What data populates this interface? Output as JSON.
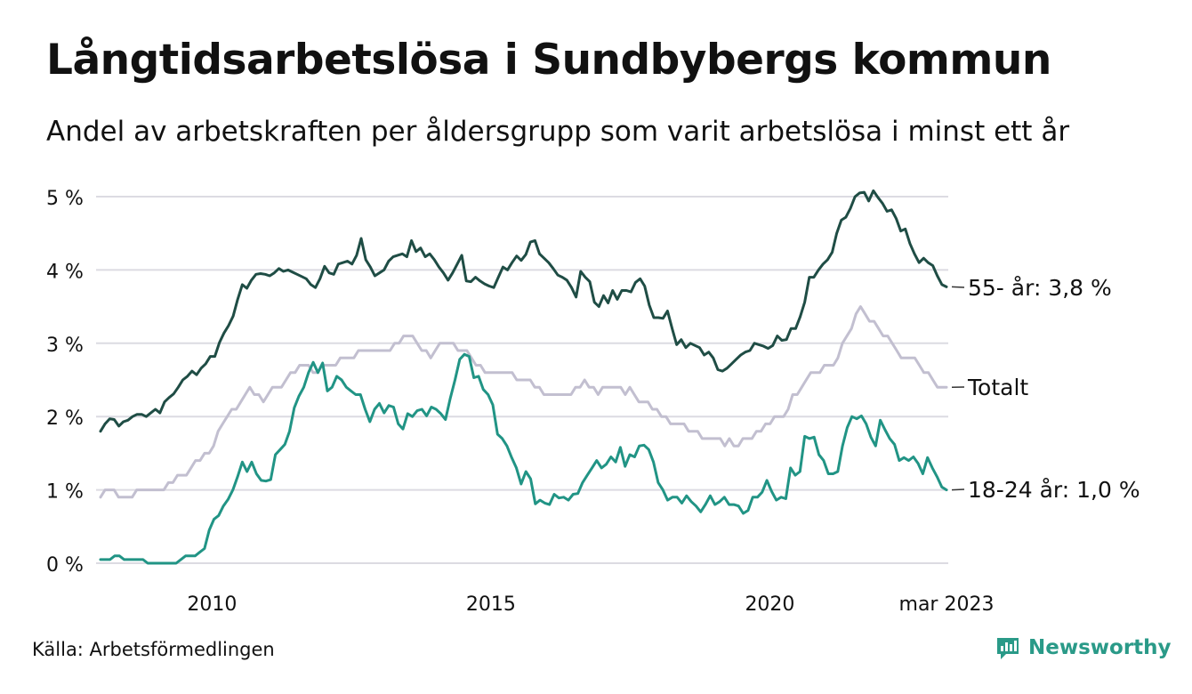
{
  "header": {
    "title": "Långtidsarbetslösa i Sundbybergs kommun",
    "subtitle": "Andel av arbetskraften per åldersgrupp som varit arbetslösa i minst ett år"
  },
  "footer": {
    "source": "Källa: Arbetsförmedlingen",
    "brand": "Newsworthy",
    "brand_icon": "bar-chart-speech-bubble-icon",
    "brand_color": "#2a9a88"
  },
  "chart_data": {
    "type": "line",
    "x_start": "2008-01",
    "x_end": "2023-03",
    "x_step": "month",
    "x_ticks": [
      {
        "label": "2010",
        "x": "2010-01"
      },
      {
        "label": "2015",
        "x": "2015-01"
      },
      {
        "label": "2020",
        "x": "2020-01"
      },
      {
        "label": "mar 2023",
        "x": "2023-03"
      }
    ],
    "y_ticks": [
      {
        "label": "0 %",
        "value": 0
      },
      {
        "label": "1 %",
        "value": 1
      },
      {
        "label": "2 %",
        "value": 2
      },
      {
        "label": "3 %",
        "value": 3
      },
      {
        "label": "4 %",
        "value": 4
      },
      {
        "label": "5 %",
        "value": 5
      }
    ],
    "ylim": [
      0,
      5.2
    ],
    "grid": true,
    "series": [
      {
        "name": "Totalt",
        "end_label": "Totalt",
        "color": "#c2bfd0",
        "values": [
          0.9,
          1.0,
          1.0,
          1.0,
          0.9,
          0.9,
          0.9,
          0.9,
          1.0,
          1.0,
          1.0,
          1.0,
          1.0,
          1.0,
          1.0,
          1.1,
          1.1,
          1.2,
          1.2,
          1.2,
          1.3,
          1.4,
          1.4,
          1.5,
          1.5,
          1.6,
          1.8,
          1.9,
          2.0,
          2.1,
          2.1,
          2.2,
          2.3,
          2.4,
          2.3,
          2.3,
          2.2,
          2.3,
          2.4,
          2.4,
          2.4,
          2.5,
          2.6,
          2.6,
          2.7,
          2.7,
          2.7,
          2.6,
          2.6,
          2.7,
          2.7,
          2.7,
          2.7,
          2.8,
          2.8,
          2.8,
          2.8,
          2.9,
          2.9,
          2.9,
          2.9,
          2.9,
          2.9,
          2.9,
          2.9,
          3.0,
          3.0,
          3.1,
          3.1,
          3.1,
          3.0,
          2.9,
          2.9,
          2.8,
          2.9,
          3.0,
          3.0,
          3.0,
          3.0,
          2.9,
          2.9,
          2.9,
          2.8,
          2.7,
          2.7,
          2.6,
          2.6,
          2.6,
          2.6,
          2.6,
          2.6,
          2.6,
          2.5,
          2.5,
          2.5,
          2.5,
          2.4,
          2.4,
          2.3,
          2.3,
          2.3,
          2.3,
          2.3,
          2.3,
          2.3,
          2.4,
          2.4,
          2.5,
          2.4,
          2.4,
          2.3,
          2.4,
          2.4,
          2.4,
          2.4,
          2.4,
          2.3,
          2.4,
          2.3,
          2.2,
          2.2,
          2.2,
          2.1,
          2.1,
          2.0,
          2.0,
          1.9,
          1.9,
          1.9,
          1.9,
          1.8,
          1.8,
          1.8,
          1.7,
          1.7,
          1.7,
          1.7,
          1.7,
          1.6,
          1.7,
          1.6,
          1.6,
          1.7,
          1.7,
          1.7,
          1.8,
          1.8,
          1.9,
          1.9,
          2.0,
          2.0,
          2.0,
          2.1,
          2.3,
          2.3,
          2.4,
          2.5,
          2.6,
          2.6,
          2.6,
          2.7,
          2.7,
          2.7,
          2.8,
          3.0,
          3.1,
          3.2,
          3.4,
          3.5,
          3.4,
          3.3,
          3.3,
          3.2,
          3.1,
          3.1,
          3.0,
          2.9,
          2.8,
          2.8,
          2.8,
          2.8,
          2.7,
          2.6,
          2.6,
          2.5,
          2.4,
          2.4,
          2.4
        ]
      },
      {
        "name": "55- år",
        "end_label": "55- år: 3,8 %",
        "color": "#1f4d45",
        "values": [
          1.8,
          1.9,
          1.97,
          1.96,
          1.87,
          1.93,
          1.95,
          2.0,
          2.03,
          2.03,
          2.0,
          2.05,
          2.1,
          2.05,
          2.2,
          2.26,
          2.31,
          2.4,
          2.5,
          2.55,
          2.62,
          2.57,
          2.66,
          2.72,
          2.82,
          2.82,
          3.01,
          3.14,
          3.24,
          3.37,
          3.6,
          3.8,
          3.75,
          3.86,
          3.94,
          3.95,
          3.94,
          3.92,
          3.96,
          4.02,
          3.98,
          4.0,
          3.97,
          3.94,
          3.91,
          3.88,
          3.8,
          3.76,
          3.88,
          4.05,
          3.96,
          3.94,
          4.08,
          4.1,
          4.12,
          4.08,
          4.2,
          4.43,
          4.14,
          4.04,
          3.92,
          3.96,
          4.0,
          4.12,
          4.18,
          4.2,
          4.22,
          4.18,
          4.4,
          4.25,
          4.3,
          4.18,
          4.22,
          4.14,
          4.04,
          3.96,
          3.86,
          3.96,
          4.08,
          4.2,
          3.85,
          3.84,
          3.9,
          3.85,
          3.81,
          3.78,
          3.76,
          3.9,
          4.04,
          4.0,
          4.1,
          4.19,
          4.13,
          4.21,
          4.38,
          4.4,
          4.22,
          4.16,
          4.1,
          4.02,
          3.93,
          3.9,
          3.86,
          3.76,
          3.63,
          3.98,
          3.9,
          3.84,
          3.56,
          3.5,
          3.65,
          3.55,
          3.72,
          3.6,
          3.72,
          3.72,
          3.7,
          3.83,
          3.88,
          3.78,
          3.52,
          3.35,
          3.35,
          3.34,
          3.44,
          3.2,
          2.98,
          3.05,
          2.94,
          3.0,
          2.97,
          2.94,
          2.84,
          2.88,
          2.8,
          2.64,
          2.62,
          2.66,
          2.72,
          2.78,
          2.84,
          2.88,
          2.9,
          3.0,
          2.98,
          2.96,
          2.93,
          2.97,
          3.1,
          3.04,
          3.05,
          3.2,
          3.2,
          3.36,
          3.56,
          3.9,
          3.9,
          4.0,
          4.08,
          4.14,
          4.24,
          4.5,
          4.68,
          4.72,
          4.84,
          5.0,
          5.05,
          5.06,
          4.94,
          5.08,
          4.99,
          4.91,
          4.8,
          4.82,
          4.7,
          4.53,
          4.56,
          4.36,
          4.22,
          4.1,
          4.16,
          4.1,
          4.06,
          3.92,
          3.8,
          3.77
        ]
      },
      {
        "name": "18-24 år",
        "end_label": "18-24 år: 1,0 %",
        "color": "#219485",
        "values": [
          0.05,
          0.05,
          0.05,
          0.1,
          0.1,
          0.05,
          0.05,
          0.05,
          0.05,
          0.05,
          0.0,
          0.0,
          0.0,
          0.0,
          0.0,
          0.0,
          0.0,
          0.05,
          0.1,
          0.1,
          0.1,
          0.15,
          0.2,
          0.45,
          0.6,
          0.65,
          0.78,
          0.87,
          1.0,
          1.18,
          1.38,
          1.25,
          1.38,
          1.22,
          1.13,
          1.12,
          1.14,
          1.48,
          1.55,
          1.62,
          1.8,
          2.12,
          2.28,
          2.4,
          2.6,
          2.74,
          2.6,
          2.73,
          2.35,
          2.4,
          2.55,
          2.5,
          2.4,
          2.35,
          2.3,
          2.3,
          2.1,
          1.93,
          2.1,
          2.18,
          2.05,
          2.15,
          2.13,
          1.9,
          1.83,
          2.04,
          2.0,
          2.08,
          2.1,
          2.01,
          2.13,
          2.1,
          2.04,
          1.96,
          2.25,
          2.5,
          2.78,
          2.85,
          2.82,
          2.53,
          2.55,
          2.37,
          2.3,
          2.16,
          1.76,
          1.7,
          1.6,
          1.44,
          1.3,
          1.08,
          1.25,
          1.15,
          0.81,
          0.86,
          0.82,
          0.8,
          0.94,
          0.89,
          0.9,
          0.86,
          0.94,
          0.95,
          1.1,
          1.2,
          1.3,
          1.4,
          1.3,
          1.35,
          1.45,
          1.38,
          1.58,
          1.32,
          1.48,
          1.45,
          1.6,
          1.61,
          1.55,
          1.38,
          1.1,
          1.0,
          0.86,
          0.9,
          0.9,
          0.82,
          0.92,
          0.84,
          0.78,
          0.7,
          0.8,
          0.92,
          0.8,
          0.84,
          0.9,
          0.8,
          0.8,
          0.78,
          0.68,
          0.72,
          0.9,
          0.9,
          0.97,
          1.13,
          0.98,
          0.86,
          0.9,
          0.88,
          1.3,
          1.2,
          1.25,
          1.73,
          1.7,
          1.72,
          1.48,
          1.4,
          1.22,
          1.22,
          1.25,
          1.6,
          1.85,
          2.0,
          1.97,
          2.01,
          1.9,
          1.72,
          1.6,
          1.95,
          1.82,
          1.7,
          1.62,
          1.4,
          1.44,
          1.4,
          1.45,
          1.36,
          1.22,
          1.44,
          1.3,
          1.18,
          1.04,
          1.0
        ]
      }
    ]
  }
}
